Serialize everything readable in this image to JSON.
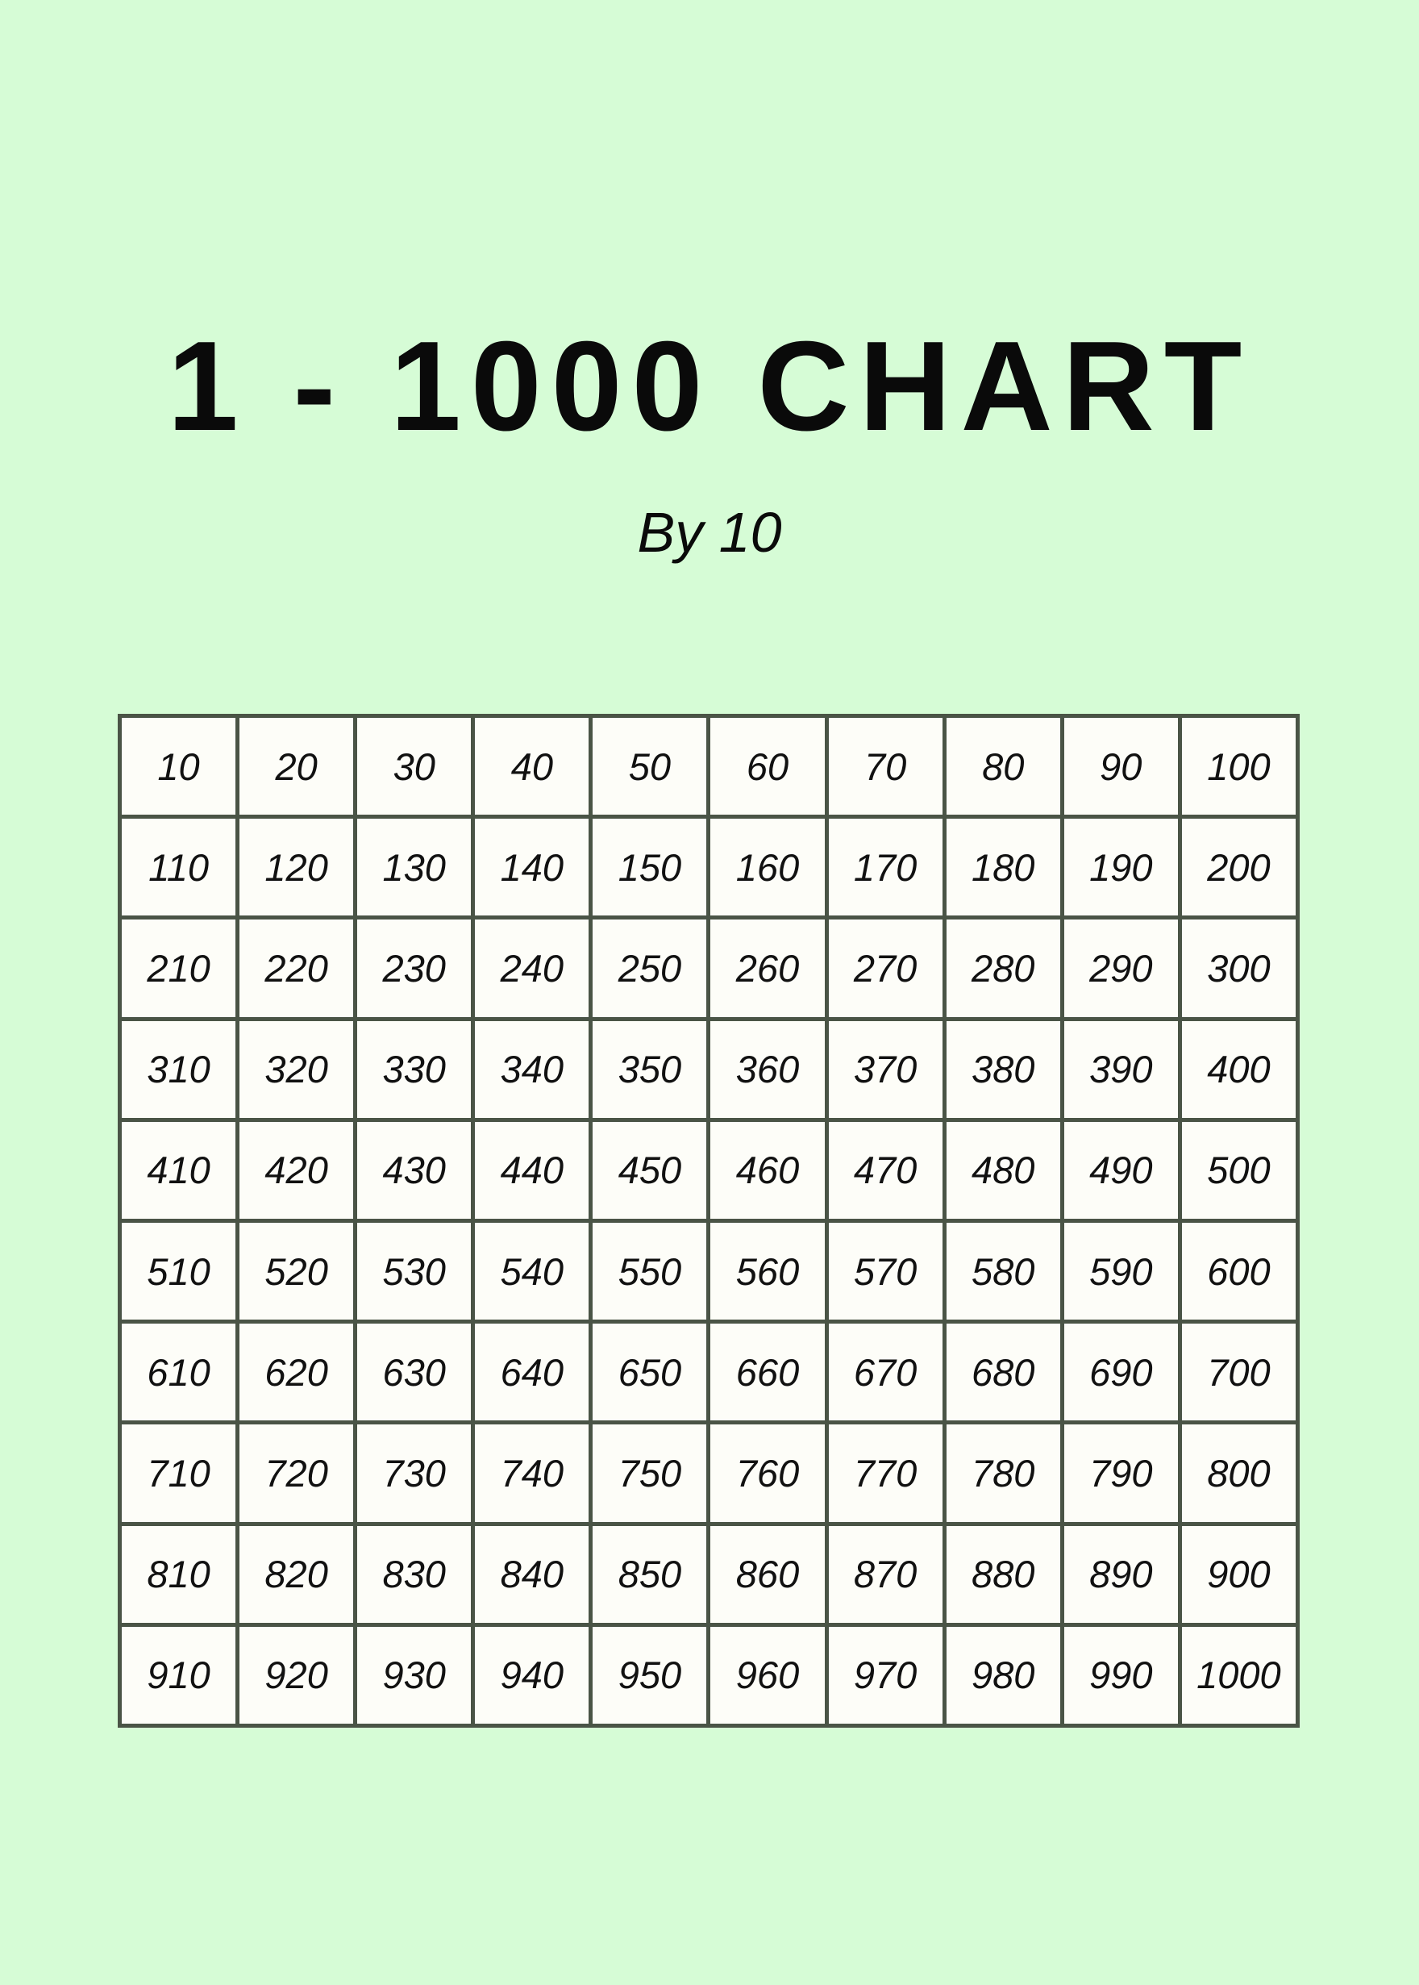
{
  "title": "1 - 1000 CHART",
  "subtitle": "By 10",
  "colors": {
    "background": "#d6fcd6",
    "cell": "#fdfdf8",
    "border": "#4a5446"
  },
  "rows": [
    [
      "10",
      "20",
      "30",
      "40",
      "50",
      "60",
      "70",
      "80",
      "90",
      "100"
    ],
    [
      "110",
      "120",
      "130",
      "140",
      "150",
      "160",
      "170",
      "180",
      "190",
      "200"
    ],
    [
      "210",
      "220",
      "230",
      "240",
      "250",
      "260",
      "270",
      "280",
      "290",
      "300"
    ],
    [
      "310",
      "320",
      "330",
      "340",
      "350",
      "360",
      "370",
      "380",
      "390",
      "400"
    ],
    [
      "410",
      "420",
      "430",
      "440",
      "450",
      "460",
      "470",
      "480",
      "490",
      "500"
    ],
    [
      "510",
      "520",
      "530",
      "540",
      "550",
      "560",
      "570",
      "580",
      "590",
      "600"
    ],
    [
      "610",
      "620",
      "630",
      "640",
      "650",
      "660",
      "670",
      "680",
      "690",
      "700"
    ],
    [
      "710",
      "720",
      "730",
      "740",
      "750",
      "760",
      "770",
      "780",
      "790",
      "800"
    ],
    [
      "810",
      "820",
      "830",
      "840",
      "850",
      "860",
      "870",
      "880",
      "890",
      "900"
    ],
    [
      "910",
      "920",
      "930",
      "940",
      "950",
      "960",
      "970",
      "980",
      "990",
      "1000"
    ]
  ]
}
